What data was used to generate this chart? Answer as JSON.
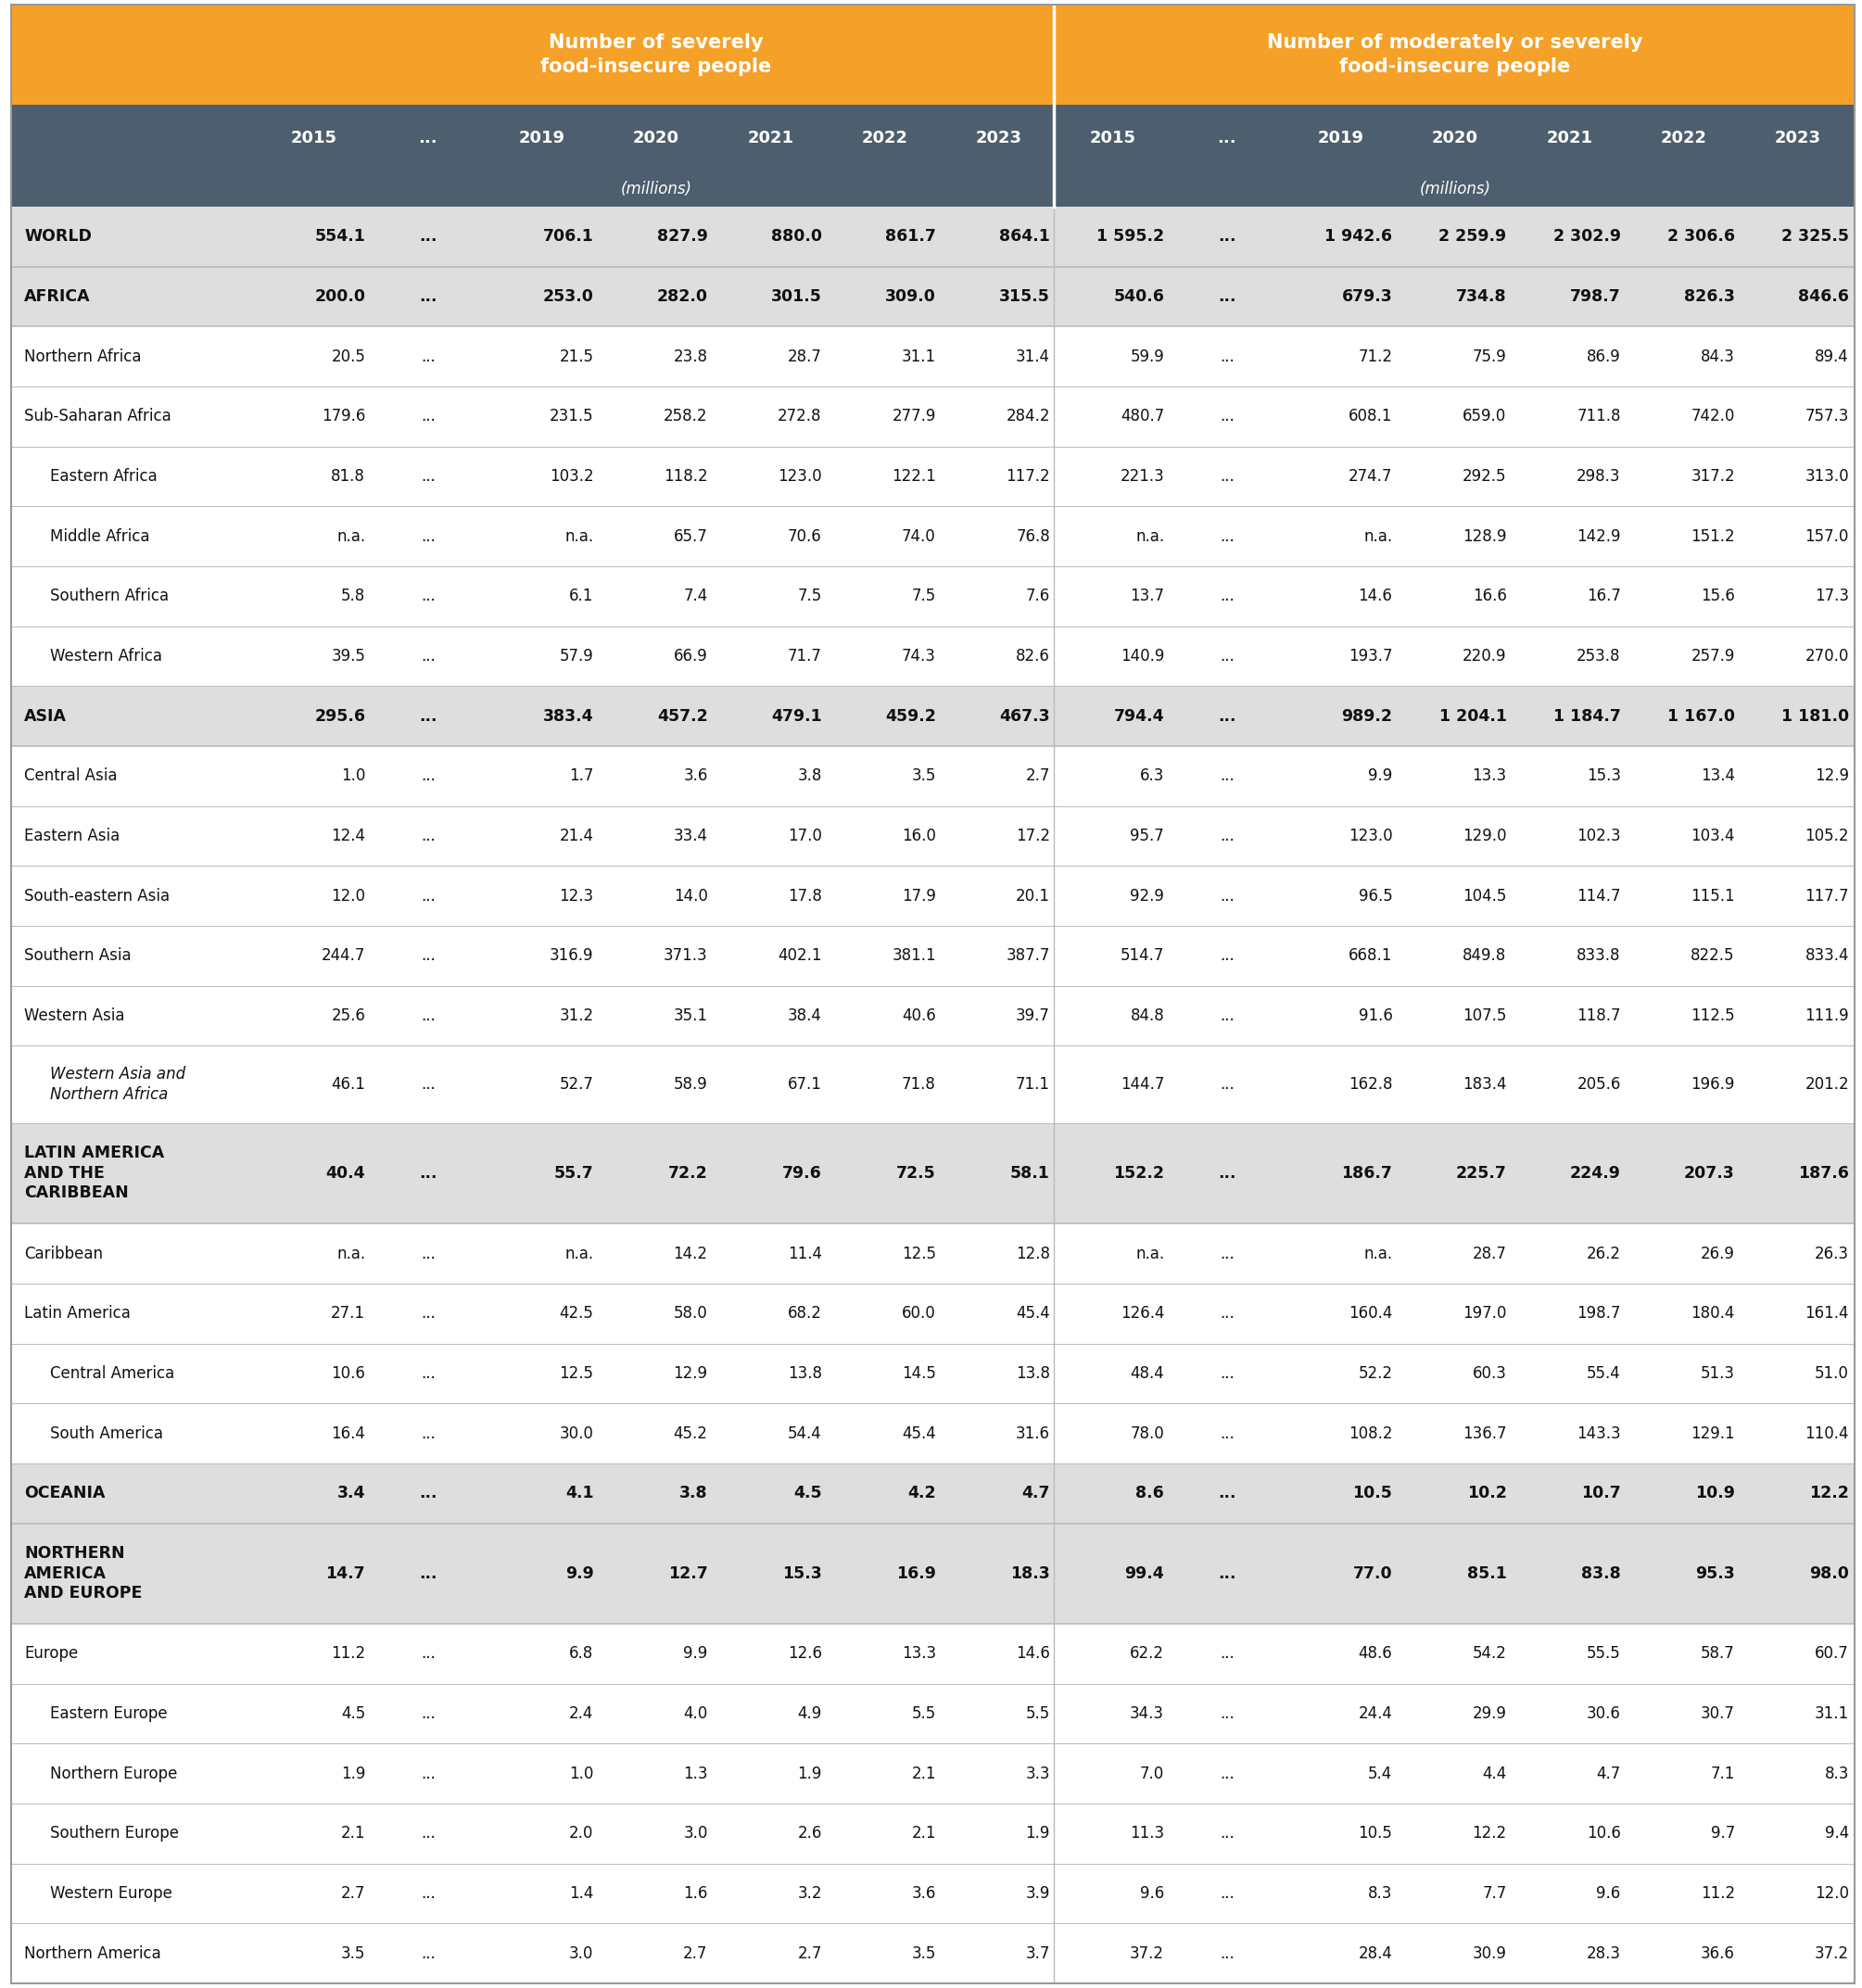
{
  "header1": "Number of severely\nfood-insecure people",
  "header2": "Number of moderately or severely\nfood-insecure people",
  "col_years": [
    "2015",
    "...",
    "2019",
    "2020",
    "2021",
    "2022",
    "2023"
  ],
  "units": "(millions)",
  "header_bg": "#F5A028",
  "subheader_bg": "#4D5F6E",
  "bold_row_bg": "#DEDEDE",
  "normal_row_bg": "#FFFFFF",
  "divider_color": "#AAAAAA",
  "text_color": "#1A1A1A",
  "rows": [
    {
      "label": "WORLD",
      "bold": true,
      "indent": 0,
      "italic": false,
      "sev": [
        "554.1",
        "...",
        "706.1",
        "827.9",
        "880.0",
        "861.7",
        "864.1"
      ],
      "mod": [
        "1 595.2",
        "...",
        "1 942.6",
        "2 259.9",
        "2 302.9",
        "2 306.6",
        "2 325.5"
      ]
    },
    {
      "label": "AFRICA",
      "bold": true,
      "indent": 0,
      "italic": false,
      "sev": [
        "200.0",
        "...",
        "253.0",
        "282.0",
        "301.5",
        "309.0",
        "315.5"
      ],
      "mod": [
        "540.6",
        "...",
        "679.3",
        "734.8",
        "798.7",
        "826.3",
        "846.6"
      ]
    },
    {
      "label": "Northern Africa",
      "bold": false,
      "indent": 0,
      "italic": false,
      "sev": [
        "20.5",
        "...",
        "21.5",
        "23.8",
        "28.7",
        "31.1",
        "31.4"
      ],
      "mod": [
        "59.9",
        "...",
        "71.2",
        "75.9",
        "86.9",
        "84.3",
        "89.4"
      ]
    },
    {
      "label": "Sub-Saharan Africa",
      "bold": false,
      "indent": 0,
      "italic": false,
      "sev": [
        "179.6",
        "...",
        "231.5",
        "258.2",
        "272.8",
        "277.9",
        "284.2"
      ],
      "mod": [
        "480.7",
        "...",
        "608.1",
        "659.0",
        "711.8",
        "742.0",
        "757.3"
      ]
    },
    {
      "label": "Eastern Africa",
      "bold": false,
      "indent": 1,
      "italic": false,
      "sev": [
        "81.8",
        "...",
        "103.2",
        "118.2",
        "123.0",
        "122.1",
        "117.2"
      ],
      "mod": [
        "221.3",
        "...",
        "274.7",
        "292.5",
        "298.3",
        "317.2",
        "313.0"
      ]
    },
    {
      "label": "Middle Africa",
      "bold": false,
      "indent": 1,
      "italic": false,
      "sev": [
        "n.a.",
        "...",
        "n.a.",
        "65.7",
        "70.6",
        "74.0",
        "76.8"
      ],
      "mod": [
        "n.a.",
        "...",
        "n.a.",
        "128.9",
        "142.9",
        "151.2",
        "157.0"
      ]
    },
    {
      "label": "Southern Africa",
      "bold": false,
      "indent": 1,
      "italic": false,
      "sev": [
        "5.8",
        "...",
        "6.1",
        "7.4",
        "7.5",
        "7.5",
        "7.6"
      ],
      "mod": [
        "13.7",
        "...",
        "14.6",
        "16.6",
        "16.7",
        "15.6",
        "17.3"
      ]
    },
    {
      "label": "Western Africa",
      "bold": false,
      "indent": 1,
      "italic": false,
      "sev": [
        "39.5",
        "...",
        "57.9",
        "66.9",
        "71.7",
        "74.3",
        "82.6"
      ],
      "mod": [
        "140.9",
        "...",
        "193.7",
        "220.9",
        "253.8",
        "257.9",
        "270.0"
      ]
    },
    {
      "label": "ASIA",
      "bold": true,
      "indent": 0,
      "italic": false,
      "sev": [
        "295.6",
        "...",
        "383.4",
        "457.2",
        "479.1",
        "459.2",
        "467.3"
      ],
      "mod": [
        "794.4",
        "...",
        "989.2",
        "1 204.1",
        "1 184.7",
        "1 167.0",
        "1 181.0"
      ]
    },
    {
      "label": "Central Asia",
      "bold": false,
      "indent": 0,
      "italic": false,
      "sev": [
        "1.0",
        "...",
        "1.7",
        "3.6",
        "3.8",
        "3.5",
        "2.7"
      ],
      "mod": [
        "6.3",
        "...",
        "9.9",
        "13.3",
        "15.3",
        "13.4",
        "12.9"
      ]
    },
    {
      "label": "Eastern Asia",
      "bold": false,
      "indent": 0,
      "italic": false,
      "sev": [
        "12.4",
        "...",
        "21.4",
        "33.4",
        "17.0",
        "16.0",
        "17.2"
      ],
      "mod": [
        "95.7",
        "...",
        "123.0",
        "129.0",
        "102.3",
        "103.4",
        "105.2"
      ]
    },
    {
      "label": "South-eastern Asia",
      "bold": false,
      "indent": 0,
      "italic": false,
      "sev": [
        "12.0",
        "...",
        "12.3",
        "14.0",
        "17.8",
        "17.9",
        "20.1"
      ],
      "mod": [
        "92.9",
        "...",
        "96.5",
        "104.5",
        "114.7",
        "115.1",
        "117.7"
      ]
    },
    {
      "label": "Southern Asia",
      "bold": false,
      "indent": 0,
      "italic": false,
      "sev": [
        "244.7",
        "...",
        "316.9",
        "371.3",
        "402.1",
        "381.1",
        "387.7"
      ],
      "mod": [
        "514.7",
        "...",
        "668.1",
        "849.8",
        "833.8",
        "822.5",
        "833.4"
      ]
    },
    {
      "label": "Western Asia",
      "bold": false,
      "indent": 0,
      "italic": false,
      "sev": [
        "25.6",
        "...",
        "31.2",
        "35.1",
        "38.4",
        "40.6",
        "39.7"
      ],
      "mod": [
        "84.8",
        "...",
        "91.6",
        "107.5",
        "118.7",
        "112.5",
        "111.9"
      ]
    },
    {
      "label": "Western Asia and\nNorthern Africa",
      "bold": false,
      "indent": 1,
      "italic": true,
      "sev": [
        "46.1",
        "...",
        "52.7",
        "58.9",
        "67.1",
        "71.8",
        "71.1"
      ],
      "mod": [
        "144.7",
        "...",
        "162.8",
        "183.4",
        "205.6",
        "196.9",
        "201.2"
      ]
    },
    {
      "label": "LATIN AMERICA\nAND THE\nCARIBBEAN",
      "bold": true,
      "indent": 0,
      "italic": false,
      "sev": [
        "40.4",
        "...",
        "55.7",
        "72.2",
        "79.6",
        "72.5",
        "58.1"
      ],
      "mod": [
        "152.2",
        "...",
        "186.7",
        "225.7",
        "224.9",
        "207.3",
        "187.6"
      ]
    },
    {
      "label": "Caribbean",
      "bold": false,
      "indent": 0,
      "italic": false,
      "sev": [
        "n.a.",
        "...",
        "n.a.",
        "14.2",
        "11.4",
        "12.5",
        "12.8"
      ],
      "mod": [
        "n.a.",
        "...",
        "n.a.",
        "28.7",
        "26.2",
        "26.9",
        "26.3"
      ]
    },
    {
      "label": "Latin America",
      "bold": false,
      "indent": 0,
      "italic": false,
      "sev": [
        "27.1",
        "...",
        "42.5",
        "58.0",
        "68.2",
        "60.0",
        "45.4"
      ],
      "mod": [
        "126.4",
        "...",
        "160.4",
        "197.0",
        "198.7",
        "180.4",
        "161.4"
      ]
    },
    {
      "label": "Central America",
      "bold": false,
      "indent": 1,
      "italic": false,
      "sev": [
        "10.6",
        "...",
        "12.5",
        "12.9",
        "13.8",
        "14.5",
        "13.8"
      ],
      "mod": [
        "48.4",
        "...",
        "52.2",
        "60.3",
        "55.4",
        "51.3",
        "51.0"
      ]
    },
    {
      "label": "South America",
      "bold": false,
      "indent": 1,
      "italic": false,
      "sev": [
        "16.4",
        "...",
        "30.0",
        "45.2",
        "54.4",
        "45.4",
        "31.6"
      ],
      "mod": [
        "78.0",
        "...",
        "108.2",
        "136.7",
        "143.3",
        "129.1",
        "110.4"
      ]
    },
    {
      "label": "OCEANIA",
      "bold": true,
      "indent": 0,
      "italic": false,
      "sev": [
        "3.4",
        "...",
        "4.1",
        "3.8",
        "4.5",
        "4.2",
        "4.7"
      ],
      "mod": [
        "8.6",
        "...",
        "10.5",
        "10.2",
        "10.7",
        "10.9",
        "12.2"
      ]
    },
    {
      "label": "NORTHERN\nAMERICA\nAND EUROPE",
      "bold": true,
      "indent": 0,
      "italic": false,
      "sev": [
        "14.7",
        "...",
        "9.9",
        "12.7",
        "15.3",
        "16.9",
        "18.3"
      ],
      "mod": [
        "99.4",
        "...",
        "77.0",
        "85.1",
        "83.8",
        "95.3",
        "98.0"
      ]
    },
    {
      "label": "Europe",
      "bold": false,
      "indent": 0,
      "italic": false,
      "sev": [
        "11.2",
        "...",
        "6.8",
        "9.9",
        "12.6",
        "13.3",
        "14.6"
      ],
      "mod": [
        "62.2",
        "...",
        "48.6",
        "54.2",
        "55.5",
        "58.7",
        "60.7"
      ]
    },
    {
      "label": "Eastern Europe",
      "bold": false,
      "indent": 1,
      "italic": false,
      "sev": [
        "4.5",
        "...",
        "2.4",
        "4.0",
        "4.9",
        "5.5",
        "5.5"
      ],
      "mod": [
        "34.3",
        "...",
        "24.4",
        "29.9",
        "30.6",
        "30.7",
        "31.1"
      ]
    },
    {
      "label": "Northern Europe",
      "bold": false,
      "indent": 1,
      "italic": false,
      "sev": [
        "1.9",
        "...",
        "1.0",
        "1.3",
        "1.9",
        "2.1",
        "3.3"
      ],
      "mod": [
        "7.0",
        "...",
        "5.4",
        "4.4",
        "4.7",
        "7.1",
        "8.3"
      ]
    },
    {
      "label": "Southern Europe",
      "bold": false,
      "indent": 1,
      "italic": false,
      "sev": [
        "2.1",
        "...",
        "2.0",
        "3.0",
        "2.6",
        "2.1",
        "1.9"
      ],
      "mod": [
        "11.3",
        "...",
        "10.5",
        "12.2",
        "10.6",
        "9.7",
        "9.4"
      ]
    },
    {
      "label": "Western Europe",
      "bold": false,
      "indent": 1,
      "italic": false,
      "sev": [
        "2.7",
        "...",
        "1.4",
        "1.6",
        "3.2",
        "3.6",
        "3.9"
      ],
      "mod": [
        "9.6",
        "...",
        "8.3",
        "7.7",
        "9.6",
        "11.2",
        "12.0"
      ]
    },
    {
      "label": "Northern America",
      "bold": false,
      "indent": 0,
      "italic": false,
      "sev": [
        "3.5",
        "...",
        "3.0",
        "2.7",
        "2.7",
        "3.5",
        "3.7"
      ],
      "mod": [
        "37.2",
        "...",
        "28.4",
        "30.9",
        "28.3",
        "36.6",
        "37.2"
      ]
    }
  ]
}
